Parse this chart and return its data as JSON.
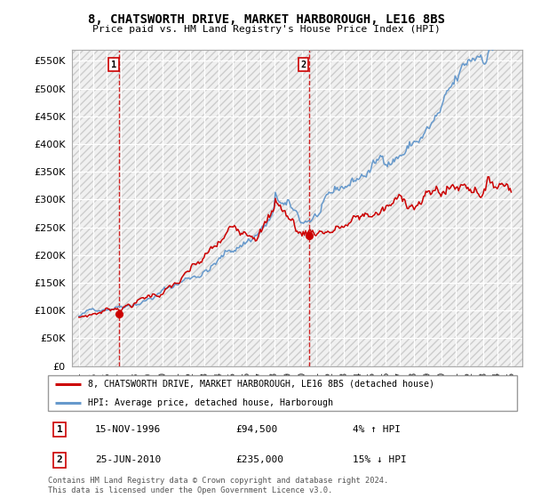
{
  "title": "8, CHATSWORTH DRIVE, MARKET HARBOROUGH, LE16 8BS",
  "subtitle": "Price paid vs. HM Land Registry's House Price Index (HPI)",
  "ylim": [
    0,
    570000
  ],
  "yticks": [
    0,
    50000,
    100000,
    150000,
    200000,
    250000,
    300000,
    350000,
    400000,
    450000,
    500000,
    550000
  ],
  "ytick_labels": [
    "£0",
    "£50K",
    "£100K",
    "£150K",
    "£200K",
    "£250K",
    "£300K",
    "£350K",
    "£400K",
    "£450K",
    "£500K",
    "£550K"
  ],
  "legend_line1": "8, CHATSWORTH DRIVE, MARKET HARBOROUGH, LE16 8BS (detached house)",
  "legend_line2": "HPI: Average price, detached house, Harborough",
  "line1_color": "#cc0000",
  "line2_color": "#6699cc",
  "annotation1": {
    "num": "1",
    "date": "15-NOV-1996",
    "price": "£94,500",
    "hpi": "4% ↑ HPI"
  },
  "annotation2": {
    "num": "2",
    "date": "25-JUN-2010",
    "price": "£235,000",
    "hpi": "15% ↓ HPI"
  },
  "copyright": "Contains HM Land Registry data © Crown copyright and database right 2024.\nThis data is licensed under the Open Government Licence v3.0.",
  "marker1_x": 1996.88,
  "marker1_y": 94500,
  "marker2_x": 2010.48,
  "marker2_y": 235000,
  "vline1_x": 1996.88,
  "vline2_x": 2010.48,
  "xlim_start": 1993.5,
  "xlim_end": 2025.8,
  "xtick_start": 1994,
  "xtick_end": 2026
}
